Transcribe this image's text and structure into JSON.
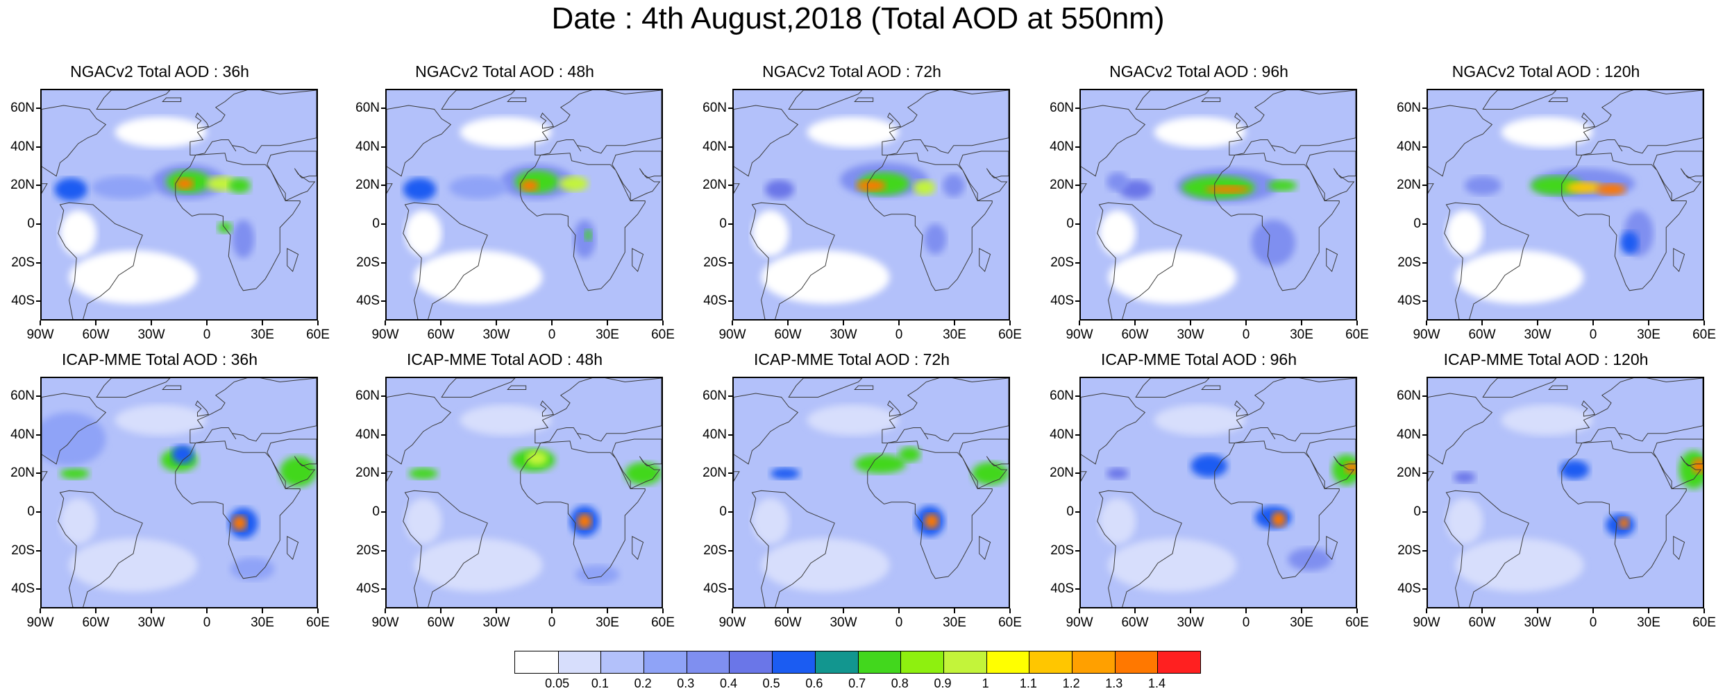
{
  "title": "Date : 4th August,2018 (Total AOD at 550nm)",
  "lat_labels": [
    "60N",
    "40N",
    "20N",
    "0",
    "20S",
    "40S"
  ],
  "lat_values": [
    60,
    40,
    20,
    0,
    -20,
    -40
  ],
  "lon_labels": [
    "90W",
    "60W",
    "30W",
    "0",
    "30E",
    "60E"
  ],
  "lon_values": [
    -90,
    -60,
    -30,
    0,
    30,
    60
  ],
  "map_extent": {
    "lon": [
      -90,
      60
    ],
    "lat": [
      -50,
      70
    ]
  },
  "rows": [
    {
      "model": "NGACv2",
      "panels": [
        {
          "title": "NGACv2 Total AOD : 36h"
        },
        {
          "title": "NGACv2 Total AOD : 48h"
        },
        {
          "title": "NGACv2 Total AOD : 72h"
        },
        {
          "title": "NGACv2 Total AOD : 96h"
        },
        {
          "title": "NGACv2 Total AOD : 120h"
        }
      ]
    },
    {
      "model": "ICAP-MME",
      "panels": [
        {
          "title": "ICAP-MME Total AOD : 36h"
        },
        {
          "title": "ICAP-MME Total AOD : 48h"
        },
        {
          "title": "ICAP-MME Total AOD : 72h"
        },
        {
          "title": "ICAP-MME Total AOD : 96h"
        },
        {
          "title": "ICAP-MME Total AOD : 120h"
        }
      ]
    }
  ],
  "colorbar": {
    "labels": [
      "0.05",
      "0.1",
      "0.2",
      "0.3",
      "0.4",
      "0.5",
      "0.6",
      "0.7",
      "0.8",
      "0.9",
      "1",
      "1.1",
      "1.2",
      "1.3",
      "1.4"
    ],
    "colors": [
      "#ffffff",
      "#d7defc",
      "#b3c1fa",
      "#8fa3f7",
      "#7f8ff0",
      "#6a76e8",
      "#1b5cf2",
      "#12968f",
      "#42d71d",
      "#8ef00f",
      "#c3f43a",
      "#ffff00",
      "#ffc600",
      "#ffa000",
      "#ff7800",
      "#ff2020"
    ]
  },
  "map_colors": {
    "background": "#e6ebff",
    "coast": "#3a3a3a"
  }
}
